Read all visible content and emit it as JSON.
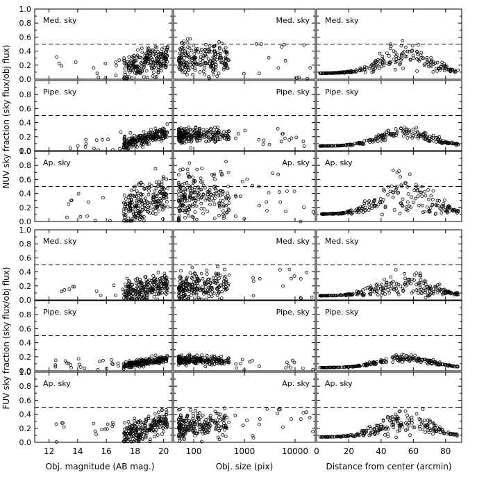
{
  "chart_data": {
    "type": "scatter",
    "grid": false,
    "dashed_reference_y": 0.5,
    "y_range": [
      0,
      1.0
    ],
    "y_ticks": [
      "0.0",
      "0.2",
      "0.4",
      "0.6",
      "0.8",
      "1.0"
    ],
    "y_group_labels": [
      "NUV sky fraction (sky flux/obj flux)",
      "FUV sky fraction (sky flux/obj flux)"
    ],
    "row_labels": [
      "Med. sky",
      "Pipe. sky",
      "Ap. sky",
      "Med. sky",
      "Pipe. sky",
      "Ap. sky"
    ],
    "columns": [
      {
        "xlabel": "Obj. magnitude (AB mag.)",
        "scale": "linear",
        "range": [
          11,
          20.6
        ],
        "tick_labels": [
          "12",
          "14",
          "16",
          "18",
          "20"
        ],
        "tick_values": [
          12,
          14,
          16,
          18,
          20
        ]
      },
      {
        "xlabel": "Obj. size (pix)",
        "scale": "log",
        "range": [
          40,
          25000
        ],
        "tick_labels": [
          "100",
          "1000",
          "10000"
        ],
        "tick_values": [
          100,
          1000,
          10000
        ]
      },
      {
        "xlabel": "Distance from center (arcmin)",
        "scale": "linear",
        "range": [
          0,
          90
        ],
        "tick_labels": [
          "0",
          "20",
          "40",
          "60",
          "80"
        ],
        "tick_values": [
          0,
          20,
          40,
          60,
          80
        ]
      }
    ],
    "series_summary": [
      {
        "group": "NUV",
        "row": "Med. sky",
        "typical_range": [
          0.05,
          0.65
        ],
        "median": 0.28
      },
      {
        "group": "NUV",
        "row": "Pipe. sky",
        "typical_range": [
          0.05,
          0.4
        ],
        "median": 0.22
      },
      {
        "group": "NUV",
        "row": "Ap. sky",
        "typical_range": [
          0.05,
          0.9
        ],
        "median": 0.35
      },
      {
        "group": "FUV",
        "row": "Med. sky",
        "typical_range": [
          0.05,
          0.55
        ],
        "median": 0.2
      },
      {
        "group": "FUV",
        "row": "Pipe. sky",
        "typical_range": [
          0.05,
          0.25
        ],
        "median": 0.15
      },
      {
        "group": "FUV",
        "row": "Ap. sky",
        "typical_range": [
          0.05,
          0.6
        ],
        "median": 0.25
      }
    ]
  }
}
